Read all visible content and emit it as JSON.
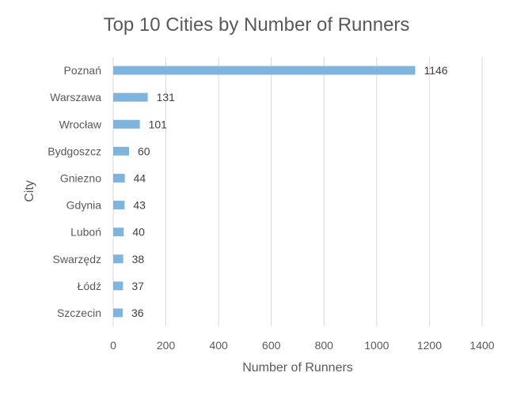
{
  "chart_data": {
    "type": "bar",
    "orientation": "horizontal",
    "title": "Top 10 Cities by Number of Runners",
    "xlabel": "Number of Runners",
    "ylabel": "City",
    "categories": [
      "Poznań",
      "Warszawa",
      "Wrocław",
      "Bydgoszcz",
      "Gniezno",
      "Gdynia",
      "Luboń",
      "Swarzędz",
      "Łódź",
      "Szczecin"
    ],
    "values": [
      1146,
      131,
      101,
      60,
      44,
      43,
      40,
      38,
      37,
      36
    ],
    "xlim": [
      0,
      1400
    ],
    "xticks": [
      0,
      200,
      400,
      600,
      800,
      1000,
      1200,
      1400
    ],
    "grid": "vertical",
    "legend": "none",
    "data_labels": true,
    "colors": {
      "bar": "#7fb4de",
      "grid": "#d9d9d9",
      "text": "#595959"
    }
  }
}
